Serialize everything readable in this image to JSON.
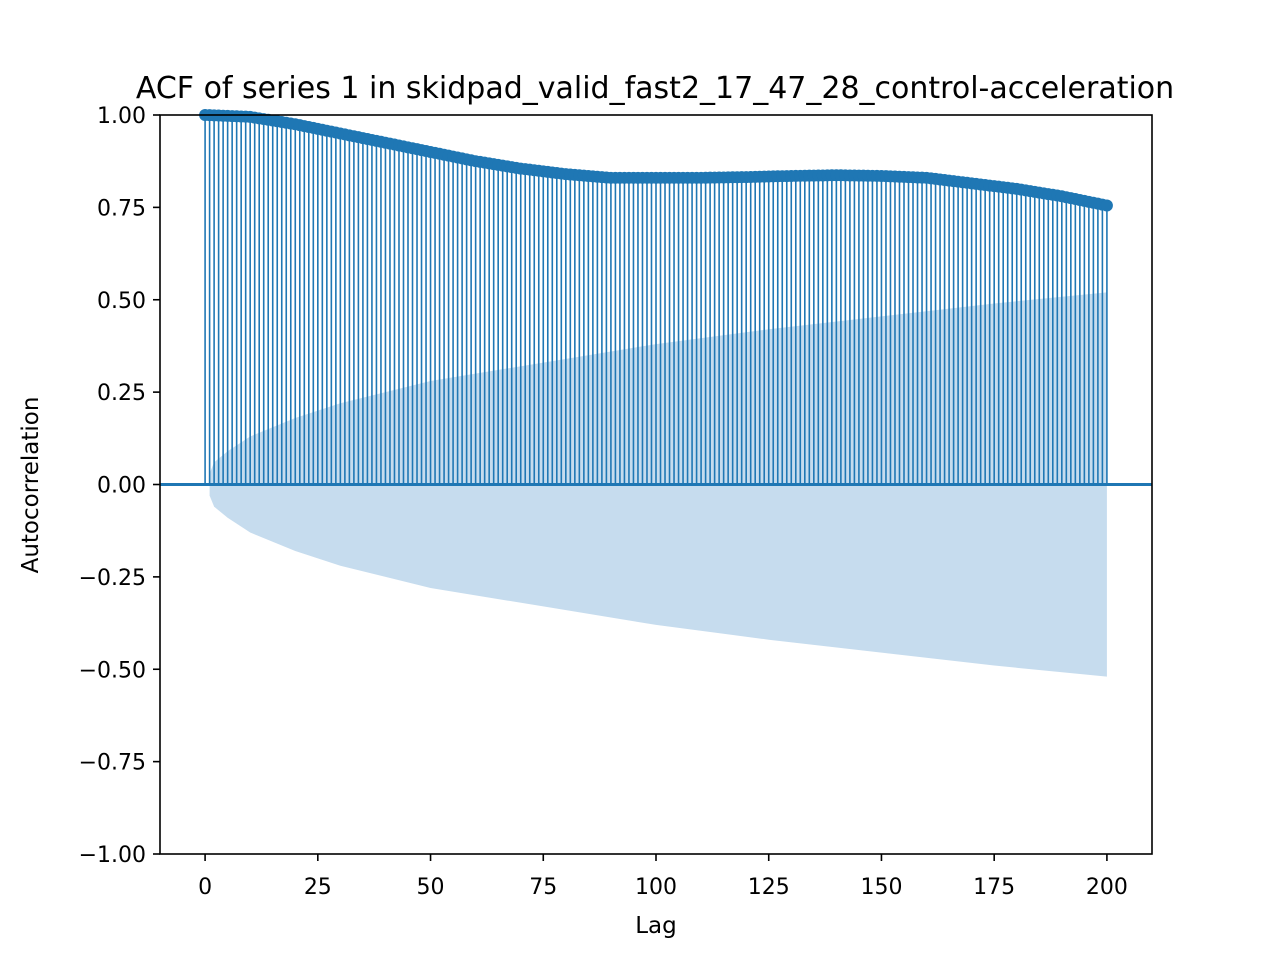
{
  "chart_data": {
    "type": "stem",
    "title": "ACF of series 1 in skidpad_valid_fast2_17_47_28_control-acceleration",
    "xlabel": "Lag",
    "ylabel": "Autocorrelation",
    "xlim": [
      -10,
      210
    ],
    "ylim": [
      -1.0,
      1.0
    ],
    "xticks": [
      0,
      25,
      50,
      75,
      100,
      125,
      150,
      175,
      200
    ],
    "yticks": [
      -1.0,
      -0.75,
      -0.5,
      -0.25,
      0.0,
      0.25,
      0.5,
      0.75,
      1.0
    ],
    "xtick_labels": [
      "0",
      "25",
      "50",
      "75",
      "100",
      "125",
      "150",
      "175",
      "200"
    ],
    "ytick_labels": [
      "−1.00",
      "−0.75",
      "−0.50",
      "−0.25",
      "0.00",
      "0.25",
      "0.50",
      "0.75",
      "1.00"
    ],
    "grid": false,
    "series": [
      {
        "lags_from": 0,
        "lags_to": 200,
        "acf_anchors": {
          "x": [
            0,
            10,
            20,
            30,
            40,
            50,
            60,
            70,
            80,
            90,
            100,
            110,
            120,
            130,
            140,
            150,
            160,
            170,
            180,
            190,
            200
          ],
          "y": [
            1.0,
            0.995,
            0.975,
            0.95,
            0.925,
            0.9,
            0.875,
            0.855,
            0.84,
            0.83,
            0.83,
            0.83,
            0.832,
            0.835,
            0.837,
            0.835,
            0.83,
            0.815,
            0.8,
            0.78,
            0.755
          ]
        }
      }
    ],
    "confidence_band": {
      "x": [
        1,
        2,
        5,
        10,
        20,
        30,
        50,
        75,
        100,
        125,
        150,
        175,
        200
      ],
      "lower": [
        -0.03,
        -0.06,
        -0.09,
        -0.13,
        -0.18,
        -0.22,
        -0.28,
        -0.33,
        -0.38,
        -0.42,
        -0.455,
        -0.49,
        -0.52
      ],
      "upper": [
        0.03,
        0.06,
        0.09,
        0.13,
        0.18,
        0.22,
        0.28,
        0.33,
        0.38,
        0.42,
        0.455,
        0.49,
        0.52
      ]
    },
    "colors": {
      "stem": "#1f77b4",
      "band": "#c6dcee",
      "axis": "#000000"
    }
  }
}
